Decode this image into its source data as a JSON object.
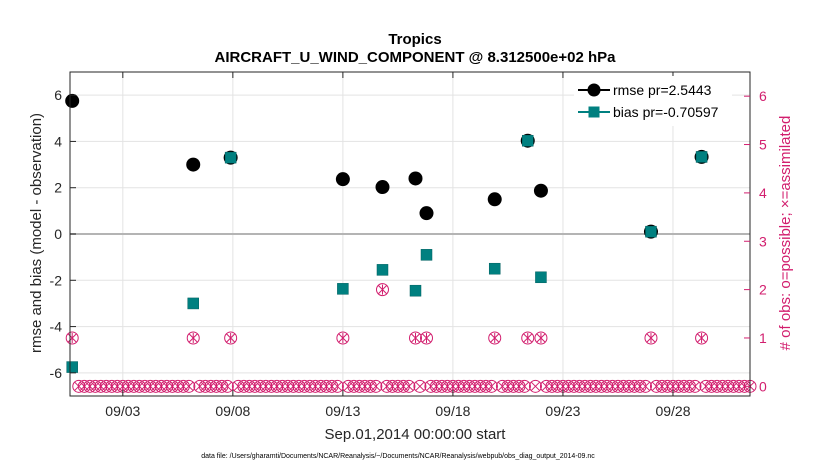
{
  "chart_data": {
    "type": "scatter",
    "title": "Tropics",
    "subtitle": "AIRCRAFT_U_WIND_COMPONENT @ 8.312500e+02 hPa",
    "xlabel": "Sep.01,2014 00:00:00 start",
    "ylabel": "rmse and bias (model - observation)",
    "y2label": "# of obs: o=possible; ×=assimilated",
    "footnote": "data file: /Users/gharamti/Documents/NCAR/Reanalysis/~/Documents/NCAR/Reanalysis/webpub/obs_diag_output_2014-09.nc",
    "xlim": [
      0.6,
      31.5
    ],
    "ylim": [
      -7,
      7
    ],
    "y2lim": [
      -0.2,
      6.5
    ],
    "x_ticks": [
      {
        "v": 3,
        "label": "09/03"
      },
      {
        "v": 8,
        "label": "09/08"
      },
      {
        "v": 13,
        "label": "09/13"
      },
      {
        "v": 18,
        "label": "09/18"
      },
      {
        "v": 23,
        "label": "09/23"
      },
      {
        "v": 28,
        "label": "09/28"
      }
    ],
    "y_ticks": [
      -6,
      -4,
      -2,
      0,
      2,
      4,
      6
    ],
    "y2_ticks": [
      0,
      1,
      2,
      3,
      4,
      5,
      6
    ],
    "colors": {
      "rmse": "#000000",
      "bias": "#008080",
      "obs": "#d21e6e",
      "zero_line": "#b4b4b4",
      "grid": "#e3e3e3"
    },
    "legend": {
      "placement": "top-right",
      "entries": [
        "rmse pr=2.5443",
        "bias pr=-0.70597"
      ]
    },
    "series": [
      {
        "name": "rmse",
        "x": [
          0.7,
          6.2,
          7.9,
          13.0,
          14.8,
          16.3,
          16.8,
          19.9,
          21.4,
          22.0,
          27.0,
          29.3
        ],
        "values": [
          5.75,
          3.0,
          3.3,
          2.37,
          2.03,
          2.4,
          0.9,
          1.5,
          4.03,
          1.87,
          0.1,
          3.33
        ]
      },
      {
        "name": "bias",
        "x": [
          0.7,
          6.2,
          7.9,
          13.0,
          14.8,
          16.3,
          16.8,
          19.9,
          21.4,
          22.0,
          27.0,
          29.3
        ],
        "values": [
          -5.75,
          -3.0,
          3.3,
          -2.37,
          -1.55,
          -2.45,
          -0.9,
          -1.5,
          4.03,
          -1.87,
          0.1,
          3.33
        ]
      },
      {
        "name": "obs_possible",
        "x": [
          0.7,
          6.2,
          7.9,
          13.0,
          14.8,
          16.3,
          16.8,
          19.9,
          21.4,
          22.0,
          27.0,
          29.3
        ],
        "values": [
          1,
          1,
          1,
          1,
          2,
          1,
          1,
          1,
          1,
          1,
          1,
          1
        ]
      },
      {
        "name": "obs_assimilated",
        "x": [
          0.7,
          6.2,
          7.9,
          13.0,
          14.8,
          16.3,
          16.8,
          19.9,
          21.4,
          22.0,
          27.0,
          29.3
        ],
        "values": [
          1,
          1,
          1,
          1,
          2,
          1,
          1,
          1,
          1,
          1,
          1,
          1
        ]
      }
    ],
    "zero_count_start": 0.75,
    "zero_count_step": 0.25,
    "zero_count_end": 31.5,
    "zero_count_value": 0
  }
}
